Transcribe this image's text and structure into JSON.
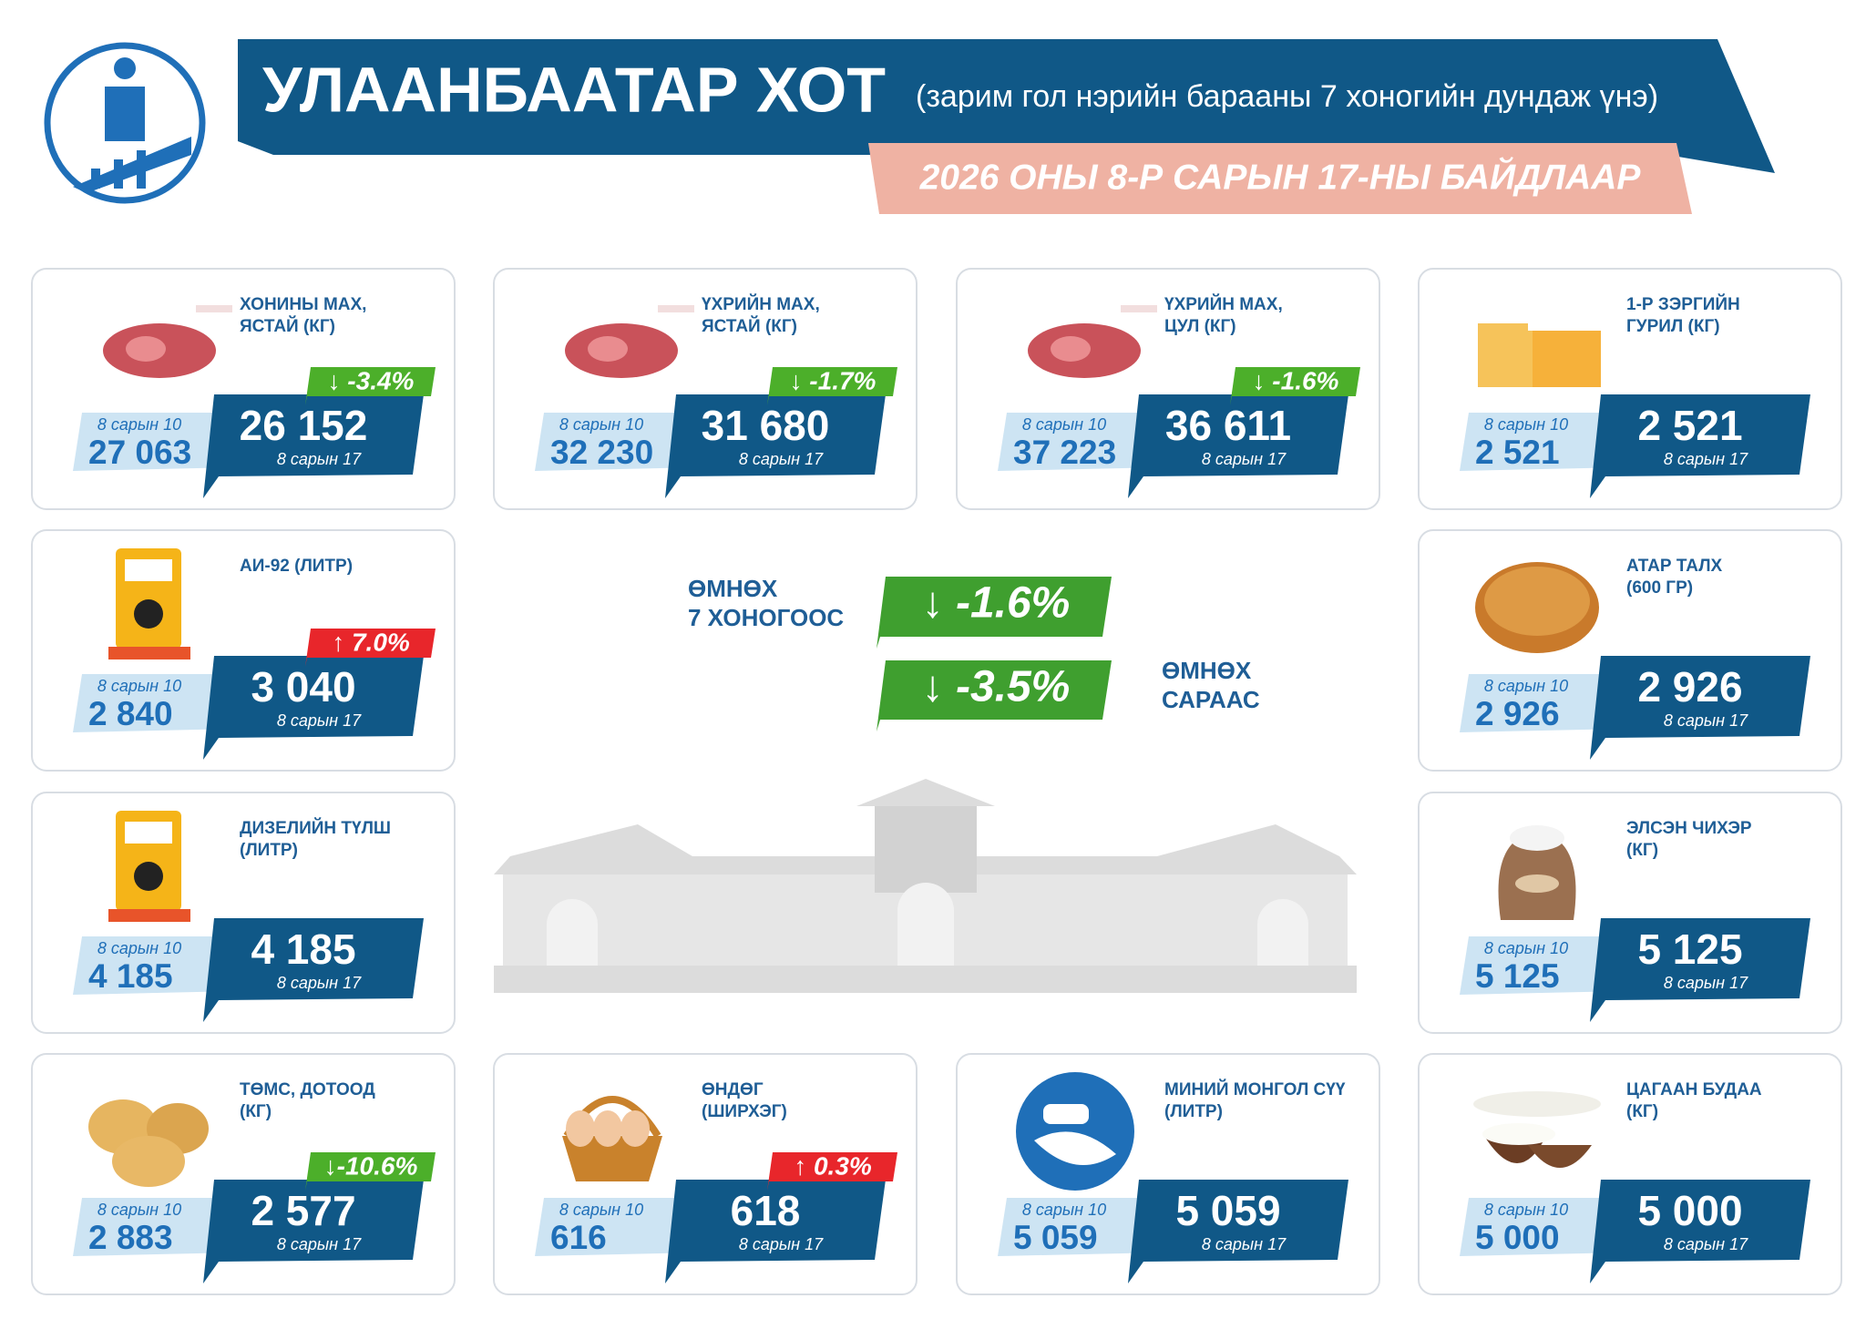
{
  "header": {
    "title": "УЛААНБААТАР ХОТ",
    "subtitle": "(зарим гол нэрийн барааны 7 хоногийн дундаж үнэ)",
    "date": "2026 ОНЫ 8-Р САРЫН 17-НЫ БАЙДЛААР"
  },
  "summary": {
    "week_label": [
      "ӨМНӨХ",
      "7 ХОНОГООС"
    ],
    "week_change": "↓  -1.6%",
    "month_label": [
      "ӨМНӨХ",
      "САРААС"
    ],
    "month_change": "↓  -3.5%"
  },
  "items": [
    {
      "name": [
        "ХОНИНЫ МАХ,",
        "ЯСТАЙ (КГ)"
      ],
      "prev_date": "8 сарын 10",
      "prev": "27 063",
      "curr": "26 152",
      "curr_date": "8 сарын 17",
      "change": "↓ -3.4%",
      "change_color": "#4caf2a"
    },
    {
      "name": [
        "ҮХРИЙН МАХ,",
        "ЯСТАЙ (КГ)"
      ],
      "prev_date": "8 сарын 10",
      "prev": "32 230",
      "curr": "31 680",
      "curr_date": "8 сарын 17",
      "change": "↓ -1.7%",
      "change_color": "#4caf2a"
    },
    {
      "name": [
        "ҮХРИЙН МАХ,",
        "ЦУЛ (КГ)"
      ],
      "prev_date": "8 сарын 10",
      "prev": "37 223",
      "curr": "36 611",
      "curr_date": "8 сарын 17",
      "change": "↓ -1.6%",
      "change_color": "#4caf2a"
    },
    {
      "name": [
        "1-Р ЗЭРГИЙН",
        "ГУРИЛ (КГ)"
      ],
      "prev_date": "8 сарын 10",
      "prev": "2 521",
      "curr": "2 521",
      "curr_date": "8 сарын 17"
    },
    {
      "name": [
        "АИ-92 (ЛИТР)"
      ],
      "prev_date": "8 сарын 10",
      "prev": "2 840",
      "curr": "3 040",
      "curr_date": "8 сарын 17",
      "change": "↑ 7.0%",
      "change_color": "#e8262b"
    },
    {
      "name": [
        "АТАР ТАЛХ",
        "(600 ГР)"
      ],
      "prev_date": "8 сарын 10",
      "prev": "2 926",
      "curr": "2 926",
      "curr_date": "8 сарын 17"
    },
    {
      "name": [
        "ДИЗЕЛИЙН ТҮЛШ",
        "(ЛИТР)"
      ],
      "prev_date": "8 сарын 10",
      "prev": "4 185",
      "curr": "4 185",
      "curr_date": "8 сарын 17"
    },
    {
      "name": [
        "ЭЛСЭН ЧИХЭР",
        "(КГ)"
      ],
      "prev_date": "8 сарын 10",
      "prev": "5 125",
      "curr": "5 125",
      "curr_date": "8 сарын 17"
    },
    {
      "name": [
        "ТӨМС, ДОТООД",
        "(КГ)"
      ],
      "prev_date": "8 сарын 10",
      "prev": "2 883",
      "curr": "2 577",
      "curr_date": "8 сарын 17",
      "change": "↓-10.6%",
      "change_color": "#4caf2a"
    },
    {
      "name": [
        "ӨНДӨГ",
        "(ШИРХЭГ)"
      ],
      "prev_date": "8 сарын 10",
      "prev": "616",
      "curr": "618",
      "curr_date": "8 сарын 17",
      "change": "↑ 0.3%",
      "change_color": "#e8262b"
    },
    {
      "name": [
        "МИНИЙ МОНГОЛ СҮҮ",
        "(ЛИТР)"
      ],
      "prev_date": "8 сарын 10",
      "prev": "5 059",
      "curr": "5 059",
      "curr_date": "8 сарын 17"
    },
    {
      "name": [
        "ЦАГААН БУДАА",
        "(КГ)"
      ],
      "prev_date": "8 сарын 10",
      "prev": "5 000",
      "curr": "5 000",
      "curr_date": "8 сарын 17"
    }
  ]
}
